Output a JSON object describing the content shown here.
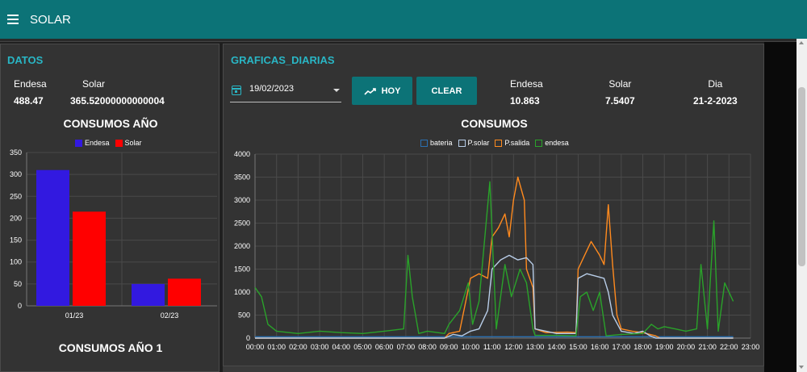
{
  "header": {
    "title": "SOLAR"
  },
  "datos": {
    "title": "DATOS",
    "endesa_label": "Endesa",
    "endesa_value": "488.47",
    "solar_label": "Solar",
    "solar_value": "365.52000000000004",
    "chart_title": "CONSUMOS AÑO",
    "chart_title_2": "CONSUMOS AÑO 1"
  },
  "graficas": {
    "title": "GRAFICAS_DIARIAS",
    "date_value": "19/02/2023",
    "hoy_label": "HOY",
    "clear_label": "CLEAR",
    "endesa_label": "Endesa",
    "endesa_value": "10.863",
    "solar_label": "Solar",
    "solar_value": "7.5407",
    "dia_label": "Dia",
    "dia_value": "21-2-2023",
    "chart_title": "CONSUMOS"
  },
  "colors": {
    "accent": "#0c7377",
    "title": "#29b6c5",
    "endesa_bar": "#3219e0",
    "solar_bar": "#ff0000",
    "bateria": "#2a6fb0",
    "psolar": "#b8cde8",
    "psalida": "#ff8a1e",
    "endesa_line": "#2aa22a"
  },
  "chart_data": [
    {
      "type": "bar",
      "title": "CONSUMOS AÑO",
      "categories": [
        "01/23",
        "02/23"
      ],
      "series": [
        {
          "name": "Endesa",
          "values": [
            310,
            50
          ]
        },
        {
          "name": "Solar",
          "values": [
            215,
            62
          ]
        }
      ],
      "ylim": [
        0,
        350
      ],
      "yticks": [
        0,
        50,
        100,
        150,
        200,
        250,
        300,
        350
      ],
      "legend": "top",
      "grid": true
    },
    {
      "type": "line",
      "title": "CONSUMOS",
      "x_unit": "hour",
      "xlim": [
        0,
        23
      ],
      "xticks": [
        "00:00",
        "01:00",
        "02:00",
        "03:00",
        "04:00",
        "05:00",
        "06:00",
        "07:00",
        "08:00",
        "09:00",
        "10:00",
        "11:00",
        "12:00",
        "13:00",
        "14:00",
        "15:00",
        "16:00",
        "17:00",
        "18:00",
        "19:00",
        "20:00",
        "21:00",
        "22:00",
        "23:00"
      ],
      "ylim": [
        0,
        4000
      ],
      "yticks": [
        0,
        500,
        1000,
        1500,
        2000,
        2500,
        3000,
        3500,
        4000
      ],
      "legend": "top",
      "grid": true,
      "series": [
        {
          "name": "bateria",
          "points": [
            [
              0,
              30
            ],
            [
              9,
              30
            ],
            [
              13,
              30
            ],
            [
              18,
              30
            ],
            [
              22.2,
              30
            ]
          ]
        },
        {
          "name": "P.solar",
          "points": [
            [
              0,
              0
            ],
            [
              8.8,
              0
            ],
            [
              9.2,
              80
            ],
            [
              9.6,
              50
            ],
            [
              10,
              150
            ],
            [
              10.4,
              200
            ],
            [
              10.8,
              600
            ],
            [
              11,
              1500
            ],
            [
              11.4,
              1700
            ],
            [
              11.8,
              1800
            ],
            [
              12.2,
              1700
            ],
            [
              12.6,
              1750
            ],
            [
              12.9,
              1600
            ],
            [
              13,
              200
            ],
            [
              13.5,
              150
            ],
            [
              14,
              100
            ],
            [
              14.9,
              100
            ],
            [
              15,
              1300
            ],
            [
              15.4,
              1400
            ],
            [
              16.2,
              1300
            ],
            [
              16.4,
              1000
            ],
            [
              16.6,
              500
            ],
            [
              17,
              150
            ],
            [
              17.6,
              100
            ],
            [
              18,
              150
            ],
            [
              18.3,
              60
            ],
            [
              18.6,
              0
            ],
            [
              22.2,
              0
            ]
          ]
        },
        {
          "name": "P.salida",
          "points": [
            [
              0,
              0
            ],
            [
              8.8,
              0
            ],
            [
              9,
              100
            ],
            [
              9.5,
              150
            ],
            [
              10,
              1300
            ],
            [
              10.4,
              1400
            ],
            [
              10.8,
              1300
            ],
            [
              11,
              2200
            ],
            [
              11.3,
              2400
            ],
            [
              11.6,
              2700
            ],
            [
              11.8,
              2200
            ],
            [
              12,
              3000
            ],
            [
              12.2,
              3500
            ],
            [
              12.5,
              3000
            ],
            [
              12.6,
              1500
            ],
            [
              12.9,
              1100
            ],
            [
              13,
              200
            ],
            [
              13.5,
              120
            ],
            [
              14.5,
              130
            ],
            [
              14.9,
              120
            ],
            [
              15,
              1500
            ],
            [
              15.3,
              1800
            ],
            [
              15.6,
              2100
            ],
            [
              16,
              1800
            ],
            [
              16.2,
              1600
            ],
            [
              16.4,
              2900
            ],
            [
              16.6,
              1600
            ],
            [
              16.8,
              500
            ],
            [
              17,
              200
            ],
            [
              17.5,
              150
            ],
            [
              18,
              120
            ],
            [
              18.6,
              50
            ],
            [
              18.8,
              0
            ],
            [
              22.2,
              0
            ]
          ]
        },
        {
          "name": "endesa",
          "points": [
            [
              0,
              1100
            ],
            [
              0.3,
              900
            ],
            [
              0.6,
              300
            ],
            [
              1,
              150
            ],
            [
              2,
              100
            ],
            [
              3,
              150
            ],
            [
              4,
              120
            ],
            [
              5,
              100
            ],
            [
              6,
              150
            ],
            [
              6.9,
              200
            ],
            [
              7.1,
              1800
            ],
            [
              7.3,
              900
            ],
            [
              7.6,
              100
            ],
            [
              8,
              150
            ],
            [
              8.8,
              100
            ],
            [
              9,
              300
            ],
            [
              9.5,
              600
            ],
            [
              9.9,
              1200
            ],
            [
              10.1,
              300
            ],
            [
              10.4,
              800
            ],
            [
              10.9,
              3400
            ],
            [
              11.2,
              200
            ],
            [
              11.6,
              1600
            ],
            [
              11.9,
              900
            ],
            [
              12.3,
              1500
            ],
            [
              12.6,
              1200
            ],
            [
              12.9,
              200
            ],
            [
              13,
              60
            ],
            [
              14,
              60
            ],
            [
              14.9,
              50
            ],
            [
              15.1,
              900
            ],
            [
              15.4,
              1000
            ],
            [
              15.7,
              600
            ],
            [
              16,
              1000
            ],
            [
              16.3,
              50
            ],
            [
              17,
              80
            ],
            [
              18,
              100
            ],
            [
              18.4,
              300
            ],
            [
              18.7,
              200
            ],
            [
              19,
              250
            ],
            [
              19.5,
              200
            ],
            [
              20,
              150
            ],
            [
              20.5,
              200
            ],
            [
              20.7,
              1600
            ],
            [
              21,
              200
            ],
            [
              21.3,
              2550
            ],
            [
              21.5,
              150
            ],
            [
              21.8,
              1200
            ],
            [
              22.2,
              800
            ]
          ]
        }
      ]
    }
  ]
}
